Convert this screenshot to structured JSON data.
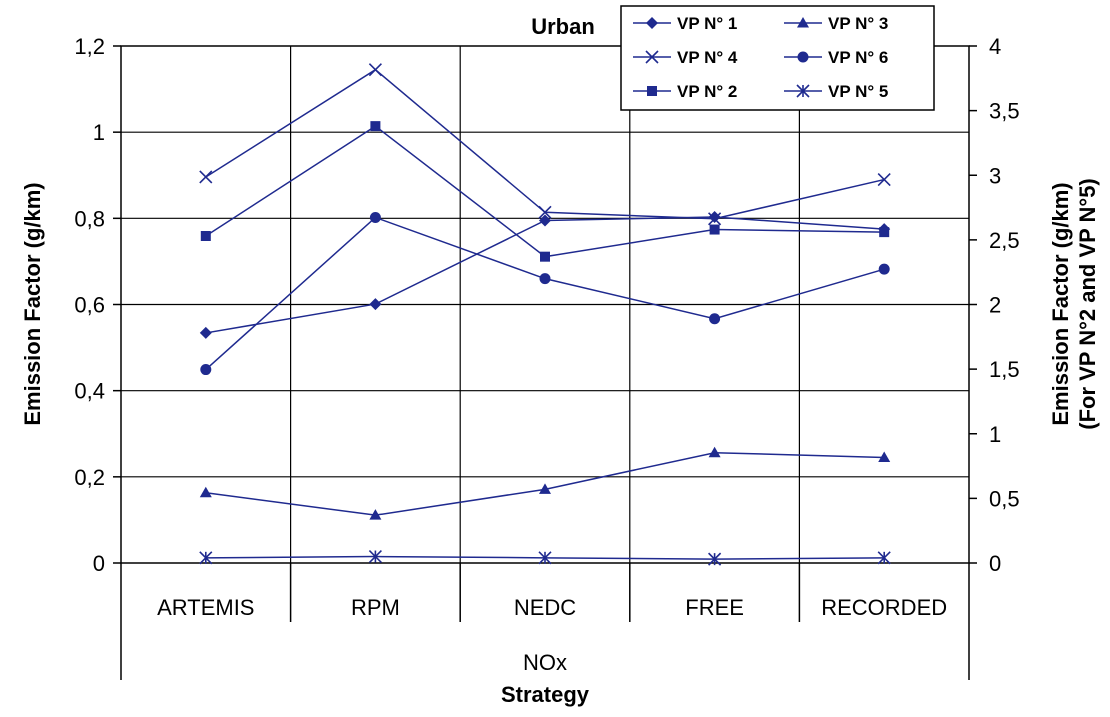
{
  "chart_data": {
    "type": "line",
    "title": "Urban",
    "xlabel": "Strategy",
    "group_label": "NOx",
    "ylabel": "Emission Factor (g/km)",
    "y2label_line1": "Emission Factor (g/km)",
    "y2label_line2": "(For VP N°2 and VP N°5)",
    "categories": [
      "ARTEMIS",
      "RPM",
      "NEDC",
      "FREE",
      "RECORDED"
    ],
    "ylim": [
      0,
      1.2
    ],
    "y_ticks": [
      "0",
      "0,2",
      "0,4",
      "0,6",
      "0,8",
      "1",
      "1,2"
    ],
    "y2lim": [
      0,
      4
    ],
    "y2_ticks": [
      "0",
      "0,5",
      "1",
      "1,5",
      "2",
      "2,5",
      "3",
      "3,5",
      "4"
    ],
    "grid": true,
    "legend_position": "top-right",
    "series_color": "#1f2a8f",
    "series": [
      {
        "name": "VP N° 1",
        "marker": "diamond",
        "axis": "left",
        "values": [
          0.534,
          0.601,
          0.795,
          0.803,
          0.775
        ]
      },
      {
        "name": "VP N° 3",
        "marker": "triangle",
        "axis": "left",
        "values": [
          0.163,
          0.111,
          0.171,
          0.256,
          0.245
        ]
      },
      {
        "name": "VP N° 4",
        "marker": "x",
        "axis": "left",
        "values": [
          0.896,
          1.145,
          0.814,
          0.799,
          0.89
        ]
      },
      {
        "name": "VP N° 6",
        "marker": "circle",
        "axis": "left",
        "values": [
          0.449,
          0.802,
          0.66,
          0.567,
          0.682
        ]
      },
      {
        "name": "VP N° 2",
        "marker": "square",
        "axis": "right",
        "values": [
          2.53,
          3.38,
          2.37,
          2.58,
          2.56
        ]
      },
      {
        "name": "VP N° 5",
        "marker": "star",
        "axis": "right",
        "values": [
          0.04,
          0.05,
          0.04,
          0.03,
          0.04
        ]
      }
    ]
  }
}
